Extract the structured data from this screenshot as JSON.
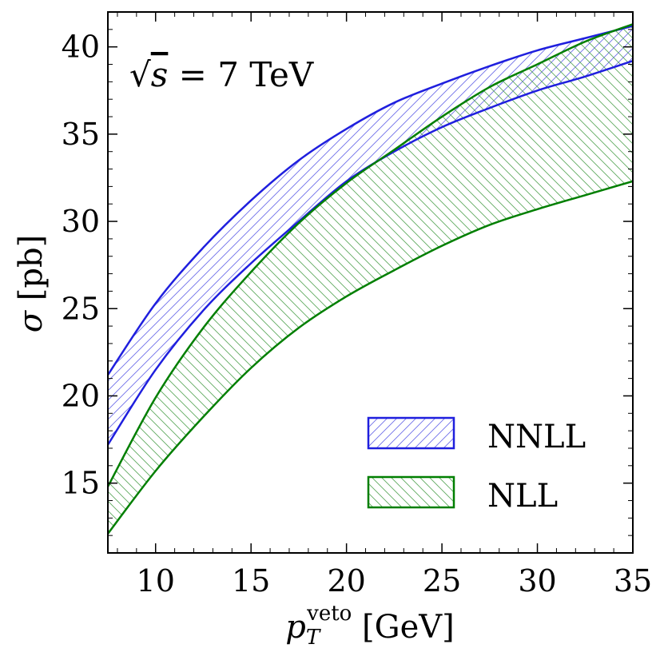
{
  "chart_data": {
    "type": "area",
    "annotation": {
      "prefix": "√",
      "variable": "s",
      "rest": " = 7 TeV"
    },
    "xlabel": {
      "main": "p",
      "sub": "T",
      "sup": "veto",
      "unit": " [GeV]"
    },
    "ylabel": {
      "symbol": "σ",
      "unit": " [pb]"
    },
    "xlim": [
      7.5,
      35
    ],
    "ylim": [
      11,
      42
    ],
    "xticks": [
      10,
      15,
      20,
      25,
      30,
      35
    ],
    "xtick_labels": [
      "10",
      "15",
      "20",
      "25",
      "30",
      "35"
    ],
    "yticks": [
      15,
      20,
      25,
      30,
      35,
      40
    ],
    "ytick_labels": [
      "15",
      "20",
      "25",
      "30",
      "35",
      "40"
    ],
    "legend_position": "bottom-right",
    "series": [
      {
        "name": "NNLL",
        "color": "#1f1fde",
        "hatch": "forward",
        "x": [
          7.5,
          10,
          12.5,
          15,
          17.5,
          20,
          22.5,
          25,
          27.5,
          30,
          32.5,
          35
        ],
        "upper": [
          21.2,
          25.3,
          28.5,
          31.2,
          33.5,
          35.3,
          36.8,
          37.9,
          38.9,
          39.8,
          40.5,
          41.2
        ],
        "lower": [
          17.2,
          21.5,
          24.9,
          27.6,
          30.0,
          32.3,
          34.0,
          35.4,
          36.5,
          37.5,
          38.3,
          39.2
        ]
      },
      {
        "name": "NLL",
        "color": "#007f00",
        "hatch": "backward",
        "x": [
          7.5,
          10,
          12.5,
          15,
          17.5,
          20,
          22.5,
          25,
          27.5,
          30,
          32.5,
          35
        ],
        "upper": [
          14.8,
          19.9,
          23.9,
          27.1,
          29.9,
          32.2,
          34.1,
          36.0,
          37.7,
          39.0,
          40.3,
          41.3
        ],
        "lower": [
          12.1,
          15.7,
          18.8,
          21.6,
          23.9,
          25.7,
          27.2,
          28.6,
          29.8,
          30.7,
          31.5,
          32.3
        ]
      }
    ]
  }
}
